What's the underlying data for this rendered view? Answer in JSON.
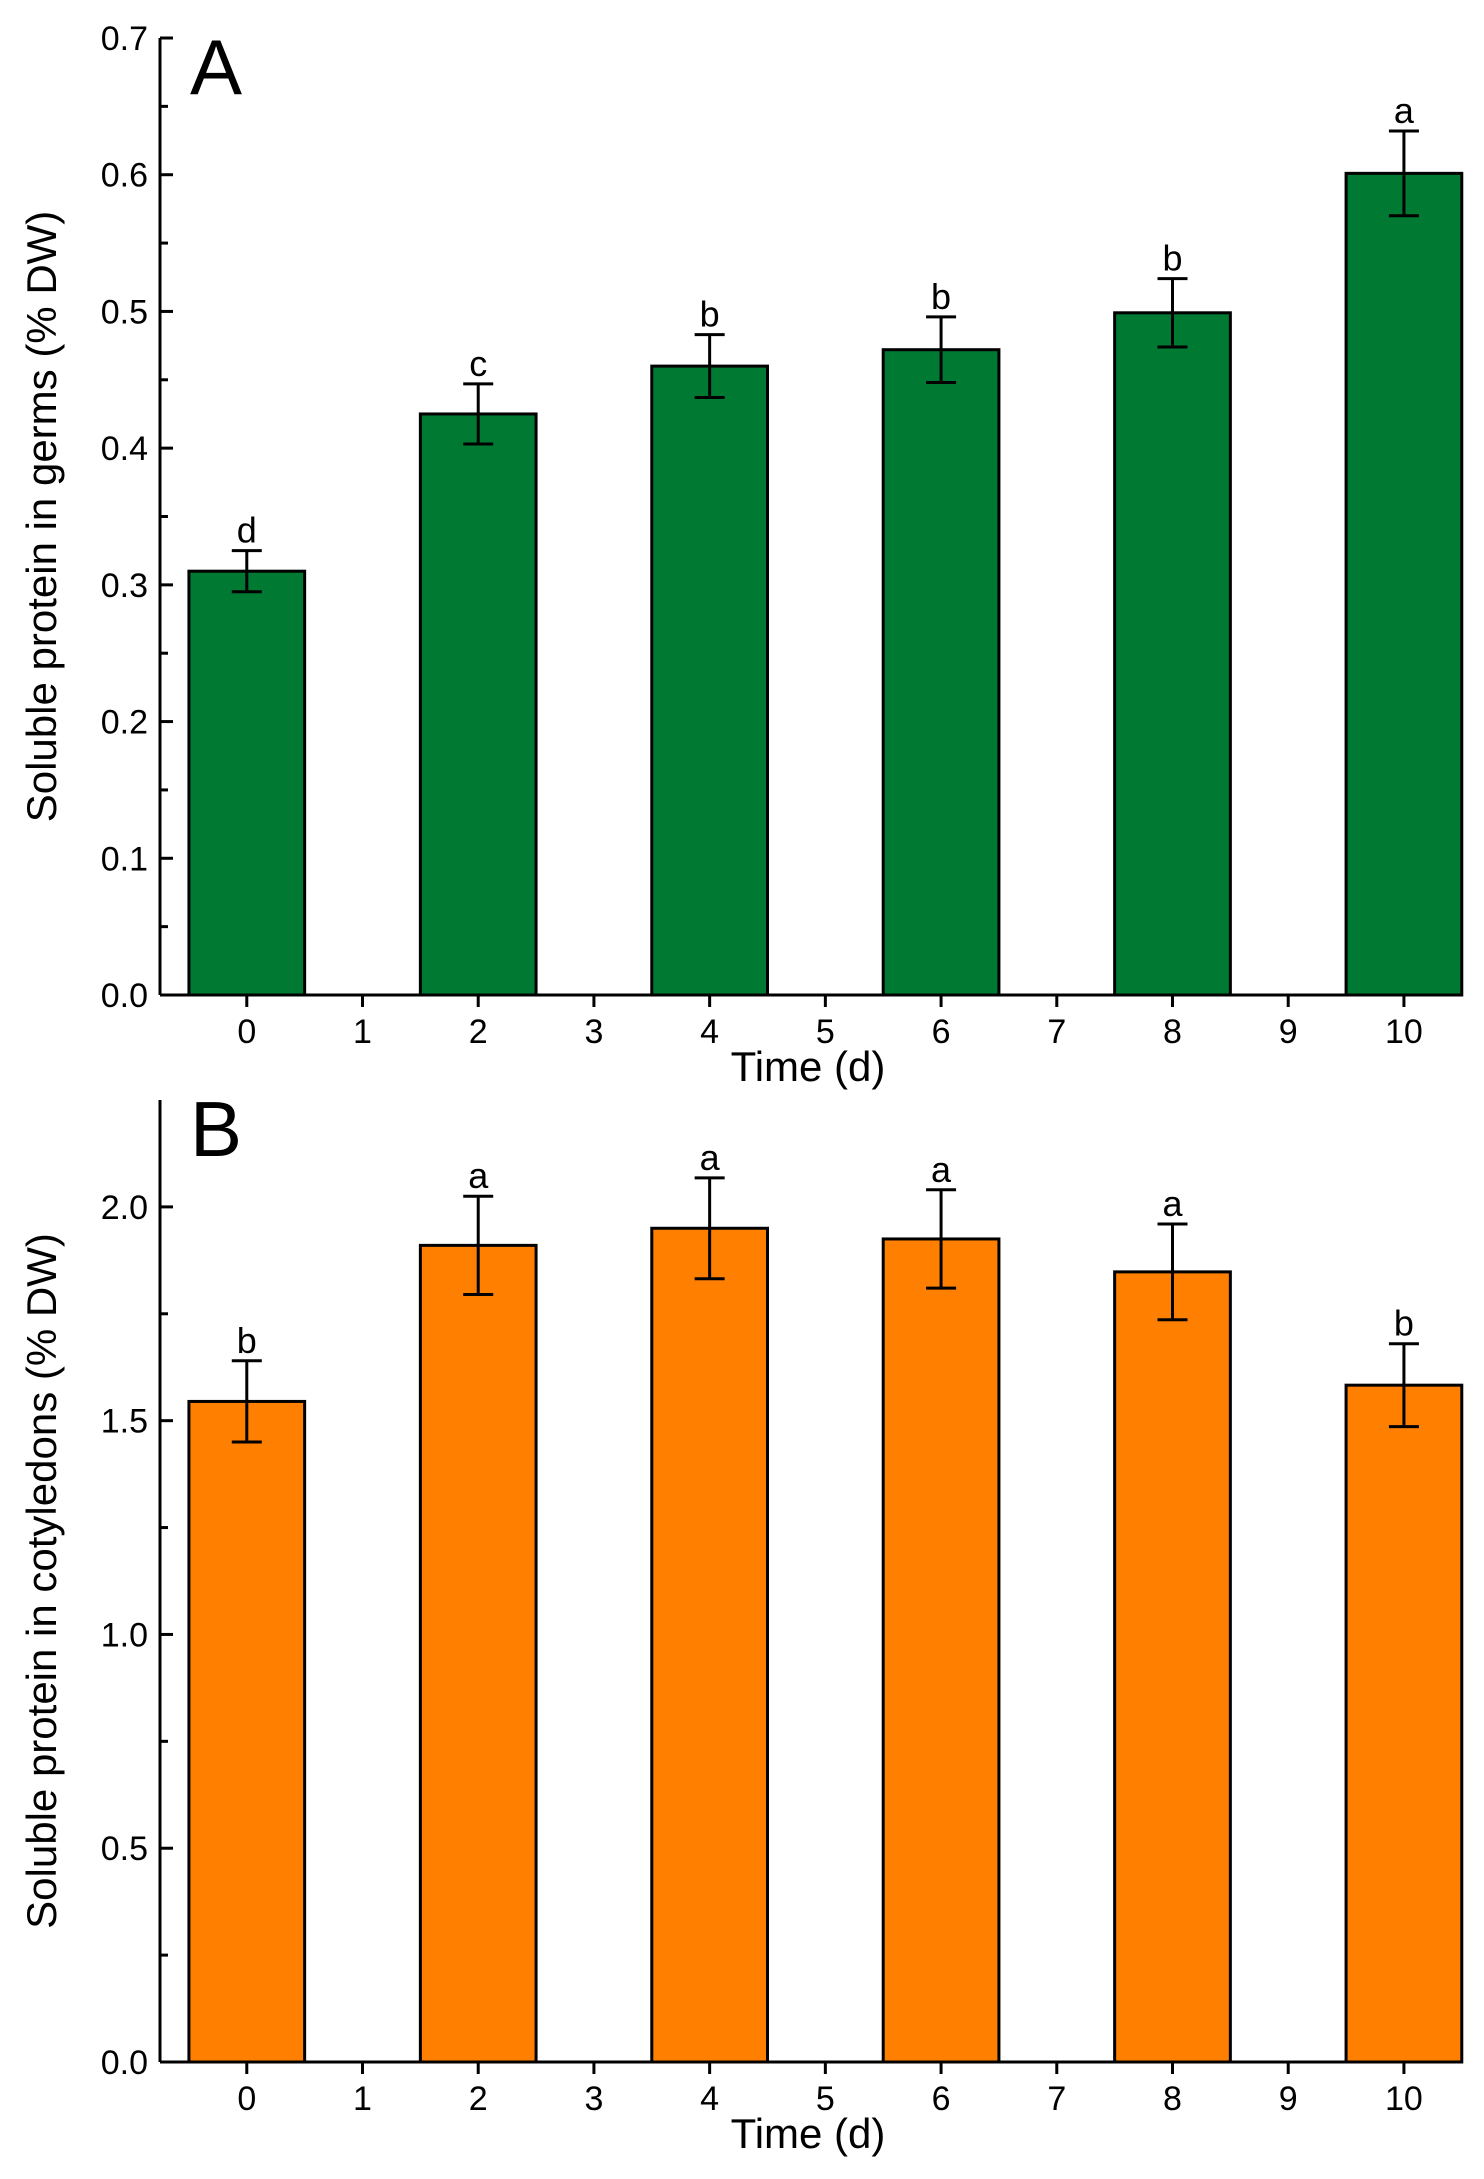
{
  "chart_data": [
    {
      "type": "bar",
      "panel_label": "A",
      "xlabel": "Time (d)",
      "ylabel": "Soluble protein in germs (% DW)",
      "x": [
        0,
        2,
        4,
        6,
        8,
        10
      ],
      "values": [
        0.31,
        0.425,
        0.46,
        0.472,
        0.499,
        0.601
      ],
      "errors": [
        0.015,
        0.022,
        0.023,
        0.024,
        0.025,
        0.031
      ],
      "significance": [
        "d",
        "c",
        "b",
        "b",
        "b",
        "a"
      ],
      "xlim": [
        -0.75,
        10.45
      ],
      "ylim": [
        0,
        0.7
      ],
      "x_ticks": [
        0,
        1,
        2,
        3,
        4,
        5,
        6,
        7,
        8,
        9,
        10
      ],
      "y_ticks": [
        0.0,
        0.1,
        0.2,
        0.3,
        0.4,
        0.5,
        0.6,
        0.7
      ],
      "y_tick_labels": [
        "0.0",
        "0.1",
        "0.2",
        "0.3",
        "0.4",
        "0.5",
        "0.6",
        "0.7"
      ],
      "color": "#007a33",
      "grid": false
    },
    {
      "type": "bar",
      "panel_label": "B",
      "xlabel": "Time (d)",
      "ylabel": "Soluble protein in cotyledons (% DW)",
      "x": [
        0,
        2,
        4,
        6,
        8,
        10
      ],
      "values": [
        1.545,
        1.91,
        1.95,
        1.925,
        1.848,
        1.583
      ],
      "errors": [
        0.095,
        0.115,
        0.118,
        0.115,
        0.112,
        0.097
      ],
      "significance": [
        "b",
        "a",
        "a",
        "a",
        "a",
        "b"
      ],
      "xlim": [
        -0.75,
        10.45
      ],
      "ylim": [
        0,
        2.25
      ],
      "x_ticks": [
        0,
        1,
        2,
        3,
        4,
        5,
        6,
        7,
        8,
        9,
        10
      ],
      "y_ticks": [
        0.0,
        0.5,
        1.0,
        1.5,
        2.0
      ],
      "y_tick_labels": [
        "0.0",
        "0.5",
        "1.0",
        "1.5",
        "2.0"
      ],
      "color": "#ff7f00",
      "grid": false
    }
  ]
}
